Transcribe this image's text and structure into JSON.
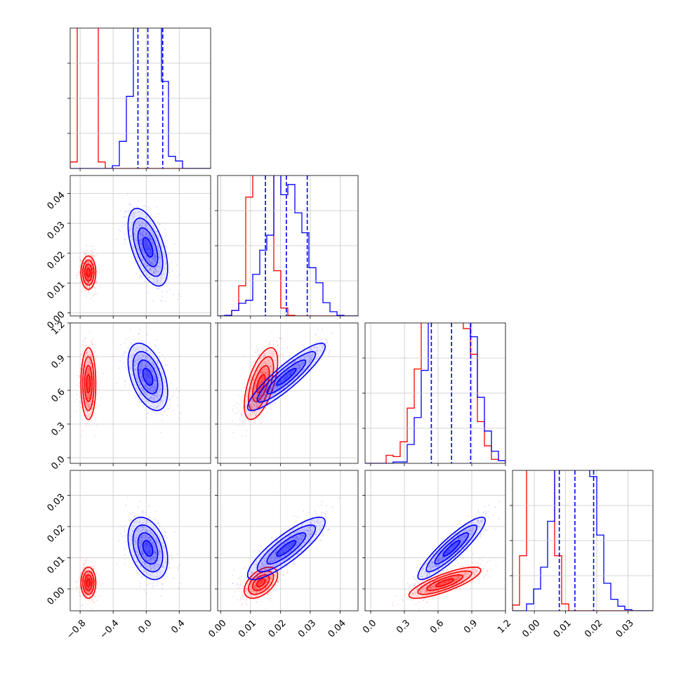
{
  "chart_data": {
    "type": "corner",
    "title": "",
    "parameters": 4,
    "series": [
      {
        "name": "",
        "color": "#ff0000",
        "means": [
          -0.7,
          0.0135,
          0.66,
          0.002
        ],
        "sds": [
          0.045,
          0.0028,
          0.16,
          0.0025
        ],
        "correlation": [
          [
            1,
            0,
            0,
            0
          ],
          [
            0,
            1,
            0.6,
            0.5
          ],
          [
            0,
            0.6,
            1,
            0.8
          ],
          [
            0,
            0.5,
            0.8,
            1
          ]
        ]
      },
      {
        "name": "",
        "color": "#0000ff",
        "means": [
          0.02,
          0.022,
          0.72,
          0.013
        ],
        "sds": [
          0.12,
          0.0065,
          0.15,
          0.005
        ],
        "correlation": [
          [
            1,
            -0.55,
            -0.45,
            -0.35
          ],
          [
            -0.55,
            1,
            0.9,
            0.85
          ],
          [
            -0.45,
            0.9,
            1,
            0.9
          ],
          [
            -0.35,
            0.85,
            0.9,
            1
          ]
        ]
      }
    ],
    "quantile_lines": {
      "color": "#0000ff",
      "values": [
        [
          -0.1,
          0.02,
          0.2
        ],
        [
          0.015,
          0.022,
          0.029
        ],
        [
          0.54,
          0.72,
          0.89
        ],
        [
          0.008,
          0.013,
          0.019
        ]
      ]
    },
    "histogram_bins": 20,
    "ranges": [
      [
        -0.92,
        0.78
      ],
      [
        -0.001,
        0.046
      ],
      [
        -0.05,
        1.2
      ],
      [
        -0.007,
        0.038
      ]
    ],
    "hist_ylims": [
      [
        0,
        1900
      ],
      [
        0,
        2950
      ],
      [
        0,
        1320
      ],
      [
        0,
        1550
      ]
    ],
    "axes": [
      {
        "name": "param-1",
        "ticks": [
          -0.8,
          -0.4,
          0.0,
          0.4
        ],
        "tick_labels": [
          "−0.8",
          "−0.4",
          "0.0",
          "0.4"
        ],
        "label": ""
      },
      {
        "name": "param-2",
        "ticks": [
          0.0,
          0.01,
          0.02,
          0.03,
          0.04
        ],
        "tick_labels": [
          "0.00",
          "0.01",
          "0.02",
          "0.03",
          "0.04"
        ],
        "label": ""
      },
      {
        "name": "param-3",
        "ticks": [
          0.0,
          0.3,
          0.6,
          0.9,
          1.2
        ],
        "tick_labels": [
          "0.0",
          "0.3",
          "0.6",
          "0.9",
          "1.2"
        ],
        "label": ""
      },
      {
        "name": "param-4",
        "ticks": [
          0.0,
          0.01,
          0.02,
          0.03
        ],
        "tick_labels": [
          "0.00",
          "0.01",
          "0.02",
          "0.03"
        ],
        "label": ""
      }
    ],
    "grid": true,
    "legend": "none"
  }
}
